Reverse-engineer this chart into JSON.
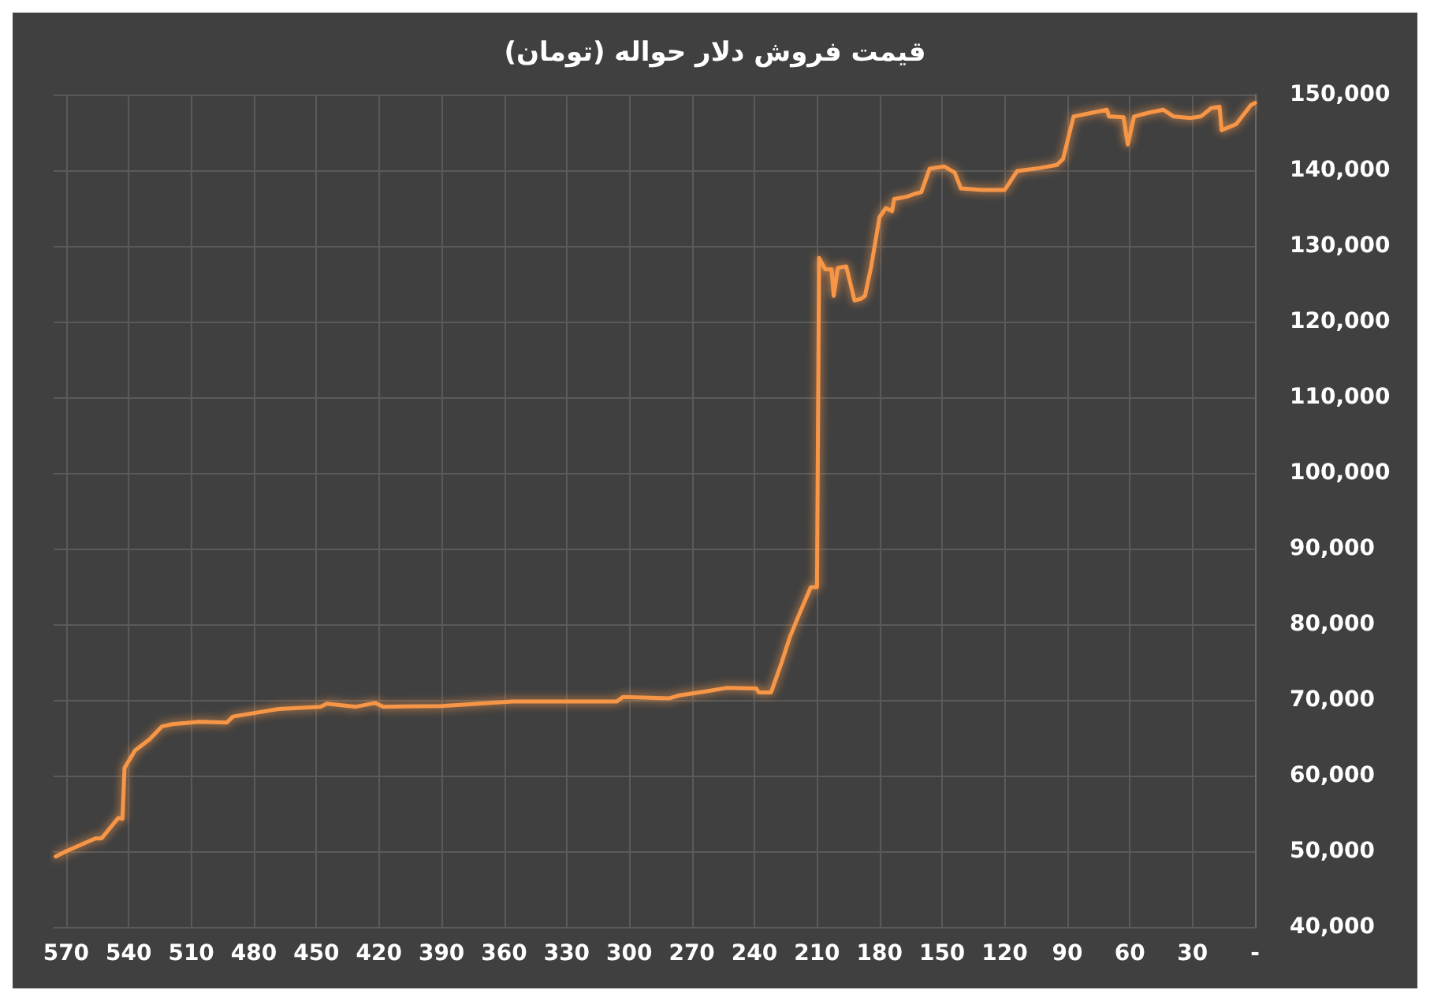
{
  "chart_data": {
    "type": "line",
    "title": "قیمت فروش دلار حواله (تومان)",
    "xlim": [
      576,
      0
    ],
    "xticks": [
      570,
      540,
      510,
      480,
      450,
      420,
      390,
      360,
      330,
      300,
      270,
      240,
      210,
      180,
      150,
      120,
      90,
      60,
      30,
      {
        "value": 0,
        "label": "-"
      }
    ],
    "ylim": [
      40000,
      150000
    ],
    "yticks": [
      {
        "value": 40000,
        "label": "40,000"
      },
      {
        "value": 50000,
        "label": "50,000"
      },
      {
        "value": 60000,
        "label": "60,000"
      },
      {
        "value": 70000,
        "label": "70,000"
      },
      {
        "value": 80000,
        "label": "80,000"
      },
      {
        "value": 90000,
        "label": "90,000"
      },
      {
        "value": 100000,
        "label": "100,000"
      },
      {
        "value": 110000,
        "label": "110,000"
      },
      {
        "value": 120000,
        "label": "120,000"
      },
      {
        "value": 130000,
        "label": "130,000"
      },
      {
        "value": 140000,
        "label": "140,000"
      },
      {
        "value": 150000,
        "label": "150,000"
      }
    ],
    "grid": true,
    "marker": "none",
    "line_style": "solid",
    "series": [
      {
        "color": "#f79646",
        "x": [
          575,
          570,
          556,
          553,
          545,
          543,
          542,
          537,
          530,
          524,
          519,
          506,
          493,
          490,
          468,
          448,
          445,
          431,
          422,
          418,
          390,
          356,
          306,
          303,
          281,
          276,
          264,
          253,
          239,
          238,
          232,
          227,
          223,
          219,
          213,
          210,
          209,
          206,
          203,
          202,
          200,
          196,
          192,
          189,
          187,
          184,
          180,
          177,
          174,
          173,
          167,
          163,
          160,
          156,
          149,
          144,
          141,
          131,
          120,
          114,
          103,
          95,
          92,
          87,
          78,
          71,
          70,
          63,
          61,
          58,
          51,
          44,
          39,
          31,
          26,
          21,
          17,
          16,
          9,
          2,
          0
        ],
        "values": [
          49300,
          50000,
          51700,
          51700,
          54400,
          54300,
          61000,
          63300,
          64800,
          66500,
          66800,
          67100,
          67000,
          67800,
          68800,
          69100,
          69500,
          69100,
          69600,
          69100,
          69200,
          69800,
          69800,
          70400,
          70200,
          70600,
          71100,
          71600,
          71500,
          71000,
          71000,
          74900,
          78300,
          81000,
          84900,
          84900,
          128400,
          126900,
          126900,
          123400,
          127100,
          127300,
          122800,
          123000,
          123400,
          127300,
          133800,
          135000,
          134600,
          136200,
          136500,
          136900,
          137100,
          140200,
          140500,
          139700,
          137600,
          137400,
          137400,
          139900,
          140300,
          140700,
          141500,
          147100,
          147600,
          148000,
          147100,
          147000,
          143400,
          147100,
          147600,
          148000,
          147100,
          146900,
          147100,
          148200,
          148400,
          145300,
          146100,
          148600,
          148900
        ]
      }
    ]
  }
}
